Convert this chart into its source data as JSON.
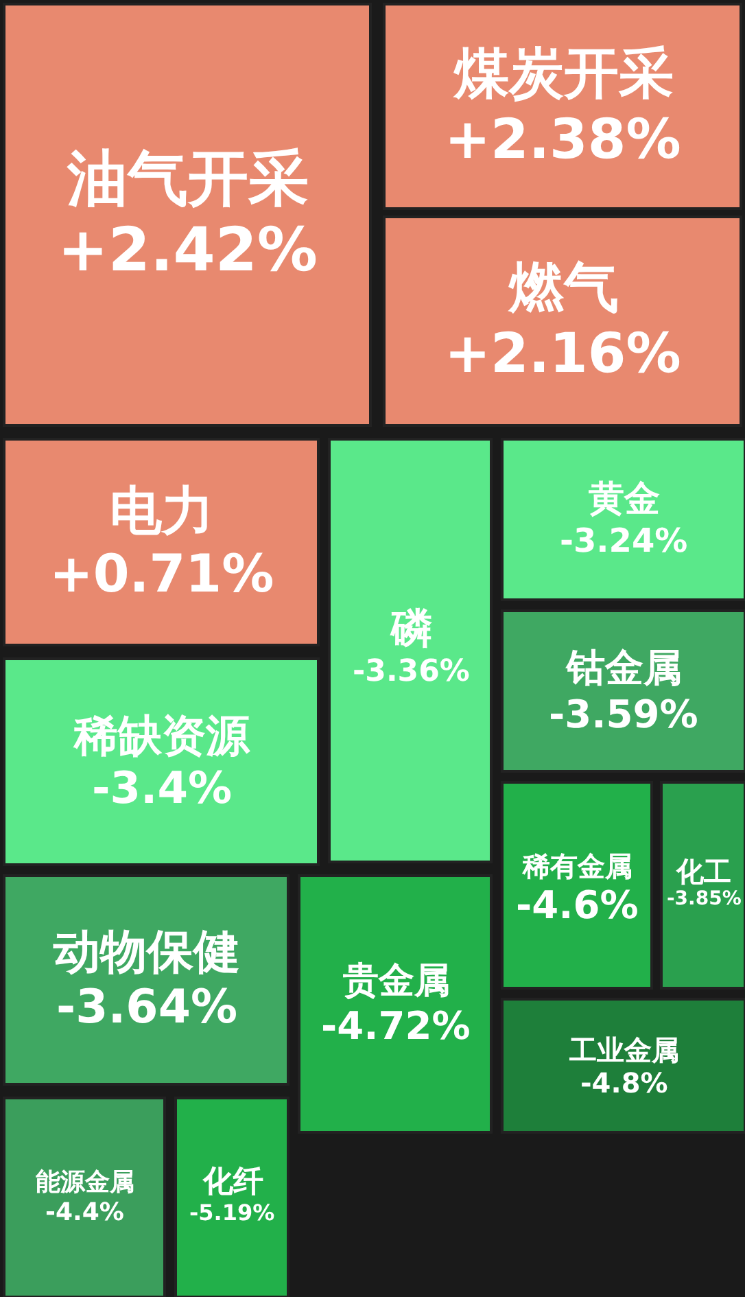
{
  "chart_data": {
    "type": "other",
    "categories": [
      "油气开采",
      "煤炭开采",
      "燃气",
      "电力",
      "稀缺资源",
      "磷",
      "黄金",
      "钴金属",
      "稀有金属",
      "化工",
      "动物保健",
      "贵金属",
      "工业金属",
      "能源金属",
      "化纤"
    ],
    "value_labels": [
      "+2.42%",
      "+2.38%",
      "+2.16%",
      "+0.71%",
      "-3.4%",
      "-3.36%",
      "-3.24%",
      "-3.59%",
      "-4.6%",
      "-3.85%",
      "-3.64%",
      "-4.72%",
      "-4.8%",
      "-4.4%",
      "-5.19%"
    ],
    "values": [
      2.42,
      2.38,
      2.16,
      0.71,
      -3.4,
      -3.36,
      -3.24,
      -3.59,
      -4.6,
      -3.85,
      -3.64,
      -4.72,
      -4.8,
      -4.4,
      -5.19
    ],
    "colors": [
      "#e8896f",
      "#e8896f",
      "#e8896f",
      "#e8896f",
      "#5ae88a",
      "#5ae88a",
      "#5ae88a",
      "#3fa862",
      "#22b04a",
      "#2aa04e",
      "#3fa862",
      "#22b04a",
      "#1e7f3a",
      "#3b9e5c",
      "#22b04a"
    ]
  }
}
